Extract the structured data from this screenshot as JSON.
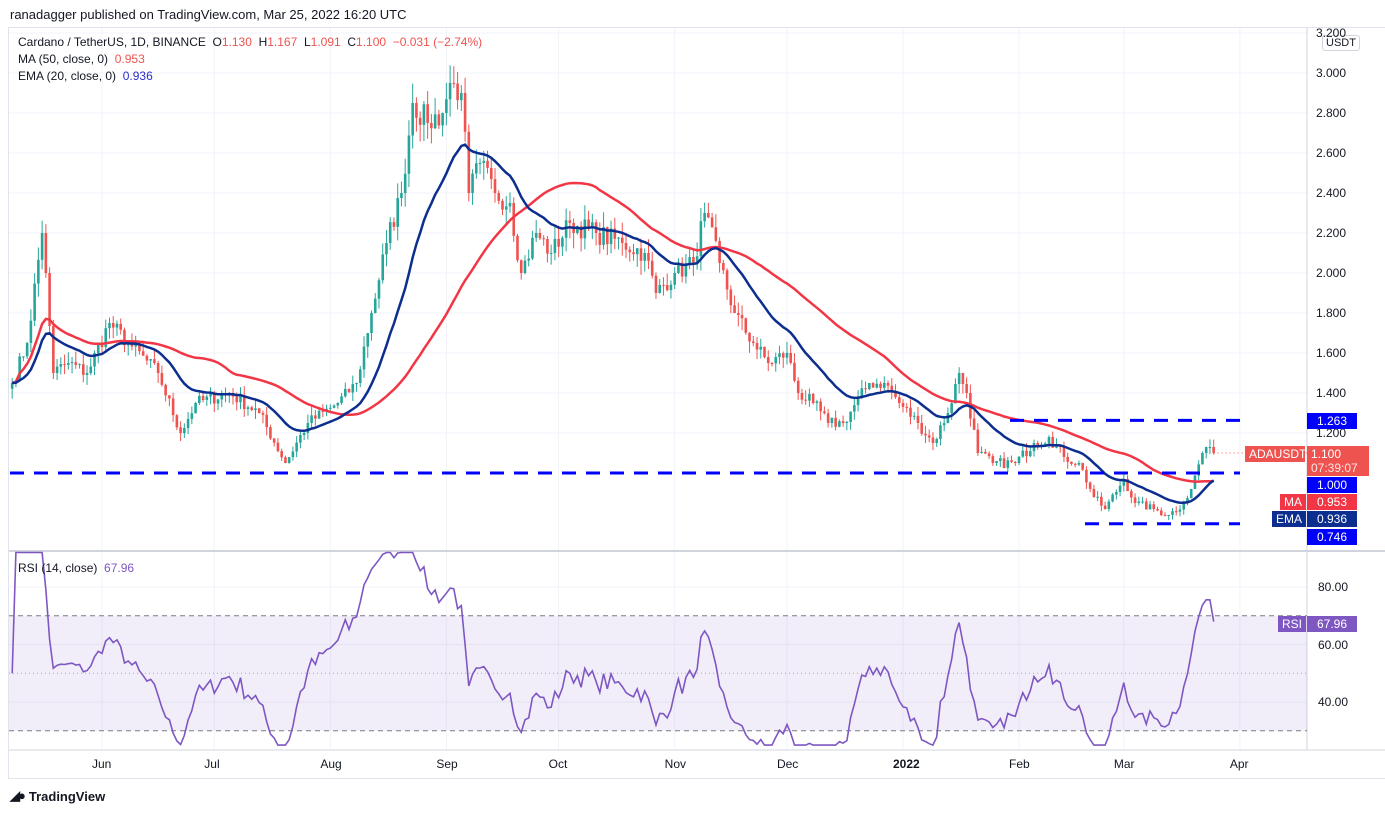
{
  "publisher": "ranadagger published on TradingView.com, Mar 25, 2022 16:20 UTC",
  "legend": {
    "symbol": "Cardano / TetherUS, 1D, BINANCE",
    "o_label": "O",
    "o": "1.130",
    "h_label": "H",
    "h": "1.167",
    "l_label": "L",
    "l": "1.091",
    "c_label": "C",
    "c": "1.100",
    "change": "−0.031 (−2.74%)",
    "ma_label": "MA (50, close, 0)",
    "ma_value": "0.953",
    "ema_label": "EMA (20, close, 0)",
    "ema_value": "0.936",
    "rsi_label": "RSI (14, close)",
    "rsi_value": "67.96"
  },
  "currency": "USDT",
  "price_axis": [
    "3.200",
    "3.000",
    "2.800",
    "2.600",
    "2.400",
    "2.200",
    "2.000",
    "1.800",
    "1.600",
    "1.400",
    "1.200"
  ],
  "rsi_axis": [
    "80.00",
    "60.00",
    "40.00"
  ],
  "time_axis": [
    "Jun",
    "Jul",
    "Aug",
    "Sep",
    "Oct",
    "Nov",
    "Dec",
    "2022",
    "Feb",
    "Mar",
    "Apr"
  ],
  "tags": {
    "level_high": "1.263",
    "symbol": "ADAUSDT",
    "last": "1.100",
    "countdown": "07:39:07",
    "level_mid": "1.000",
    "ma": "MA",
    "ma_value": "0.953",
    "ema": "EMA",
    "ema_value": "0.936",
    "level_low": "0.746",
    "rsi": "RSI",
    "rsi_value": "67.96"
  },
  "branding": "TradingView",
  "colors": {
    "up": "#26a69a",
    "down": "#ef5350",
    "ma": "#f23645",
    "ema": "#0c2f8f",
    "level": "#0000ff",
    "rsi": "#7e57c2"
  },
  "chart_data": {
    "type": "candlestick",
    "symbol": "ADAUSDT",
    "interval": "1D",
    "ylim": [
      0.65,
      3.2
    ],
    "approx_close": [
      [
        "2021-05-08",
        1.45
      ],
      [
        "2021-05-12",
        1.65
      ],
      [
        "2021-05-16",
        2.2
      ],
      [
        "2021-05-17",
        2.0
      ],
      [
        "2021-05-19",
        1.5
      ],
      [
        "2021-05-23",
        1.55
      ],
      [
        "2021-05-28",
        1.5
      ],
      [
        "2021-06-03",
        1.75
      ],
      [
        "2021-06-08",
        1.65
      ],
      [
        "2021-06-16",
        1.5
      ],
      [
        "2021-06-22",
        1.2
      ],
      [
        "2021-06-26",
        1.35
      ],
      [
        "2021-07-05",
        1.4
      ],
      [
        "2021-07-13",
        1.3
      ],
      [
        "2021-07-20",
        1.05
      ],
      [
        "2021-07-26",
        1.25
      ],
      [
        "2021-08-03",
        1.35
      ],
      [
        "2021-08-08",
        1.45
      ],
      [
        "2021-08-12",
        1.8
      ],
      [
        "2021-08-16",
        2.15
      ],
      [
        "2021-08-20",
        2.4
      ],
      [
        "2021-08-23",
        2.85
      ],
      [
        "2021-08-27",
        2.75
      ],
      [
        "2021-08-31",
        2.8
      ],
      [
        "2021-09-02",
        2.95
      ],
      [
        "2021-09-05",
        2.9
      ],
      [
        "2021-09-07",
        2.4
      ],
      [
        "2021-09-10",
        2.55
      ],
      [
        "2021-09-14",
        2.4
      ],
      [
        "2021-09-18",
        2.35
      ],
      [
        "2021-09-21",
        2.0
      ],
      [
        "2021-09-25",
        2.2
      ],
      [
        "2021-09-29",
        2.1
      ],
      [
        "2021-10-04",
        2.25
      ],
      [
        "2021-10-11",
        2.2
      ],
      [
        "2021-10-18",
        2.15
      ],
      [
        "2021-10-24",
        2.1
      ],
      [
        "2021-10-27",
        1.9
      ],
      [
        "2021-11-01",
        2.0
      ],
      [
        "2021-11-06",
        2.05
      ],
      [
        "2021-11-09",
        2.3
      ],
      [
        "2021-11-13",
        2.05
      ],
      [
        "2021-11-17",
        1.8
      ],
      [
        "2021-11-22",
        1.65
      ],
      [
        "2021-11-26",
        1.55
      ],
      [
        "2021-12-01",
        1.6
      ],
      [
        "2021-12-04",
        1.4
      ],
      [
        "2021-12-08",
        1.35
      ],
      [
        "2021-12-12",
        1.25
      ],
      [
        "2021-12-16",
        1.25
      ],
      [
        "2021-12-23",
        1.45
      ],
      [
        "2021-12-27",
        1.45
      ],
      [
        "2021-12-31",
        1.35
      ],
      [
        "2022-01-05",
        1.25
      ],
      [
        "2022-01-09",
        1.15
      ],
      [
        "2022-01-13",
        1.3
      ],
      [
        "2022-01-16",
        1.5
      ],
      [
        "2022-01-18",
        1.4
      ],
      [
        "2022-01-21",
        1.1
      ],
      [
        "2022-01-25",
        1.05
      ],
      [
        "2022-01-31",
        1.05
      ],
      [
        "2022-02-05",
        1.15
      ],
      [
        "2022-02-09",
        1.18
      ],
      [
        "2022-02-13",
        1.08
      ],
      [
        "2022-02-17",
        1.05
      ],
      [
        "2022-02-21",
        0.88
      ],
      [
        "2022-02-24",
        0.82
      ],
      [
        "2022-03-01",
        0.97
      ],
      [
        "2022-03-04",
        0.85
      ],
      [
        "2022-03-09",
        0.82
      ],
      [
        "2022-03-13",
        0.79
      ],
      [
        "2022-03-17",
        0.85
      ],
      [
        "2022-03-19",
        0.92
      ],
      [
        "2022-03-22",
        1.1
      ],
      [
        "2022-03-23",
        1.13
      ],
      [
        "2022-03-24",
        1.13
      ],
      [
        "2022-03-25",
        1.1
      ]
    ],
    "last_ohlc": {
      "open": 1.13,
      "high": 1.167,
      "low": 1.091,
      "close": 1.1
    },
    "indicators": [
      {
        "name": "MA (50, close, 0)",
        "value": 0.953
      },
      {
        "name": "EMA (20, close, 0)",
        "value": 0.936
      }
    ],
    "levels": [
      1.263,
      1.0,
      0.746
    ],
    "rsi": {
      "period": 14,
      "value": 67.96,
      "ylim": [
        25,
        92
      ],
      "bands": [
        70,
        50,
        30
      ]
    }
  }
}
